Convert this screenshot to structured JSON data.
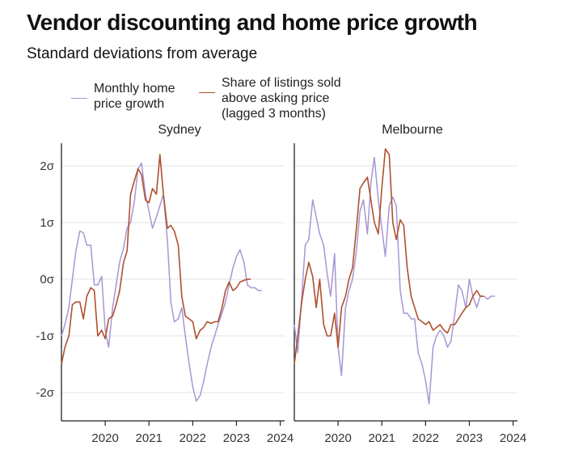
{
  "title": "Vendor discounting and home price growth",
  "subtitle": "Standard deviations from average",
  "legend": [
    {
      "label": "Monthly home\nprice growth",
      "color": "#a895d6"
    },
    {
      "label": "Share of listings sold\nabove asking price\n(lagged 3 months)",
      "color": "#b0502e"
    }
  ],
  "chart_data": [
    {
      "type": "line",
      "panel_title": "Sydney",
      "x_ticks": [
        2020,
        2021,
        2022,
        2023,
        2024
      ],
      "y_ticks": [
        {
          "value": 2,
          "label": "2σ"
        },
        {
          "value": 1,
          "label": "1σ"
        },
        {
          "value": 0,
          "label": "0σ"
        },
        {
          "value": -1,
          "label": "-1σ"
        },
        {
          "value": -2,
          "label": "-2σ"
        }
      ],
      "xlim": [
        2019.0,
        2024.1
      ],
      "ylim": [
        -2.5,
        2.4
      ],
      "grid": "horizontal",
      "series": [
        {
          "name": "Monthly home price growth",
          "color": "#a895d6",
          "x": [
            2019.0,
            2019.08,
            2019.17,
            2019.25,
            2019.33,
            2019.42,
            2019.5,
            2019.58,
            2019.67,
            2019.75,
            2019.83,
            2019.92,
            2020.0,
            2020.08,
            2020.17,
            2020.25,
            2020.33,
            2020.42,
            2020.5,
            2020.58,
            2020.67,
            2020.75,
            2020.83,
            2020.92,
            2021.0,
            2021.08,
            2021.17,
            2021.25,
            2021.33,
            2021.42,
            2021.5,
            2021.58,
            2021.67,
            2021.75,
            2021.83,
            2021.92,
            2022.0,
            2022.08,
            2022.17,
            2022.25,
            2022.33,
            2022.42,
            2022.5,
            2022.58,
            2022.67,
            2022.75,
            2022.83,
            2022.92,
            2023.0,
            2023.08,
            2023.17,
            2023.25,
            2023.33,
            2023.42,
            2023.5,
            2023.58
          ],
          "y": [
            -1.0,
            -0.8,
            -0.5,
            0.0,
            0.5,
            0.85,
            0.82,
            0.6,
            0.6,
            -0.1,
            -0.1,
            0.05,
            -0.9,
            -1.2,
            -0.5,
            -0.1,
            0.3,
            0.55,
            0.9,
            1.0,
            1.4,
            1.95,
            2.05,
            1.5,
            1.2,
            0.9,
            1.1,
            1.3,
            1.5,
            0.7,
            -0.4,
            -0.75,
            -0.7,
            -0.5,
            -1.0,
            -1.5,
            -1.9,
            -2.15,
            -2.05,
            -1.8,
            -1.5,
            -1.2,
            -1.0,
            -0.8,
            -0.6,
            -0.4,
            -0.1,
            0.2,
            0.4,
            0.52,
            0.3,
            -0.1,
            -0.15,
            -0.15,
            -0.2,
            -0.2
          ]
        },
        {
          "name": "Share of listings sold above asking price (lagged 3 months)",
          "color": "#b0502e",
          "x": [
            2019.0,
            2019.08,
            2019.17,
            2019.25,
            2019.33,
            2019.42,
            2019.5,
            2019.58,
            2019.67,
            2019.75,
            2019.83,
            2019.92,
            2020.0,
            2020.08,
            2020.17,
            2020.25,
            2020.33,
            2020.42,
            2020.5,
            2020.58,
            2020.67,
            2020.75,
            2020.83,
            2020.92,
            2021.0,
            2021.08,
            2021.17,
            2021.25,
            2021.33,
            2021.42,
            2021.5,
            2021.58,
            2021.67,
            2021.75,
            2021.83,
            2021.92,
            2022.0,
            2022.08,
            2022.17,
            2022.25,
            2022.33,
            2022.42,
            2022.5,
            2022.58,
            2022.67,
            2022.75,
            2022.83,
            2022.92,
            2023.0,
            2023.08,
            2023.17,
            2023.25,
            2023.33
          ],
          "y": [
            -1.5,
            -1.2,
            -1.0,
            -0.45,
            -0.4,
            -0.4,
            -0.7,
            -0.3,
            -0.15,
            -0.2,
            -1.0,
            -0.9,
            -1.05,
            -0.7,
            -0.65,
            -0.45,
            -0.2,
            0.3,
            0.5,
            1.5,
            1.75,
            1.95,
            1.85,
            1.4,
            1.35,
            1.6,
            1.5,
            2.2,
            1.5,
            0.9,
            0.95,
            0.85,
            0.6,
            -0.3,
            -0.65,
            -0.7,
            -0.75,
            -1.05,
            -0.9,
            -0.85,
            -0.75,
            -0.78,
            -0.75,
            -0.75,
            -0.5,
            -0.2,
            -0.05,
            -0.2,
            -0.15,
            -0.05,
            -0.02,
            0.0,
            0.0
          ]
        }
      ]
    },
    {
      "type": "line",
      "panel_title": "Melbourne",
      "x_ticks": [
        2020,
        2021,
        2022,
        2023,
        2024
      ],
      "y_ticks": [
        {
          "value": 2,
          "label": ""
        },
        {
          "value": 1,
          "label": ""
        },
        {
          "value": 0,
          "label": ""
        },
        {
          "value": -1,
          "label": ""
        },
        {
          "value": -2,
          "label": ""
        }
      ],
      "xlim": [
        2019.0,
        2024.1
      ],
      "ylim": [
        -2.5,
        2.4
      ],
      "grid": "horizontal",
      "series": [
        {
          "name": "Monthly home price growth",
          "color": "#a895d6",
          "x": [
            2019.0,
            2019.08,
            2019.17,
            2019.25,
            2019.33,
            2019.42,
            2019.5,
            2019.58,
            2019.67,
            2019.75,
            2019.83,
            2019.92,
            2020.0,
            2020.08,
            2020.17,
            2020.25,
            2020.33,
            2020.42,
            2020.5,
            2020.58,
            2020.67,
            2020.75,
            2020.83,
            2020.92,
            2021.0,
            2021.08,
            2021.17,
            2021.25,
            2021.33,
            2021.42,
            2021.5,
            2021.58,
            2021.67,
            2021.75,
            2021.83,
            2021.92,
            2022.0,
            2022.08,
            2022.17,
            2022.25,
            2022.33,
            2022.42,
            2022.5,
            2022.58,
            2022.67,
            2022.75,
            2022.83,
            2022.92,
            2023.0,
            2023.08,
            2023.17,
            2023.25,
            2023.33,
            2023.42,
            2023.5,
            2023.58
          ],
          "y": [
            -0.8,
            -1.3,
            -0.3,
            0.6,
            0.7,
            1.4,
            1.1,
            0.8,
            0.6,
            0.1,
            -0.3,
            0.45,
            -1.2,
            -1.7,
            -0.5,
            -0.2,
            0.0,
            0.5,
            1.2,
            1.4,
            0.8,
            1.7,
            2.15,
            1.4,
            0.9,
            0.4,
            1.3,
            1.45,
            1.3,
            -0.2,
            -0.6,
            -0.6,
            -0.7,
            -0.7,
            -1.3,
            -1.5,
            -1.8,
            -2.2,
            -1.2,
            -1.0,
            -0.9,
            -1.0,
            -1.2,
            -1.1,
            -0.6,
            -0.1,
            -0.2,
            -0.5,
            0.0,
            -0.3,
            -0.5,
            -0.3,
            -0.3,
            -0.35,
            -0.3,
            -0.3
          ]
        },
        {
          "name": "Share of listings sold above asking price (lagged 3 months)",
          "color": "#b0502e",
          "x": [
            2019.0,
            2019.08,
            2019.17,
            2019.25,
            2019.33,
            2019.42,
            2019.5,
            2019.58,
            2019.67,
            2019.75,
            2019.83,
            2019.92,
            2020.0,
            2020.08,
            2020.17,
            2020.25,
            2020.33,
            2020.42,
            2020.5,
            2020.58,
            2020.67,
            2020.75,
            2020.83,
            2020.92,
            2021.0,
            2021.08,
            2021.17,
            2021.25,
            2021.33,
            2021.42,
            2021.5,
            2021.58,
            2021.67,
            2021.75,
            2021.83,
            2021.92,
            2022.0,
            2022.08,
            2022.17,
            2022.25,
            2022.33,
            2022.42,
            2022.5,
            2022.58,
            2022.67,
            2022.75,
            2022.83,
            2022.92,
            2023.0,
            2023.08,
            2023.17,
            2023.25,
            2023.33
          ],
          "y": [
            -1.5,
            -1.0,
            -0.4,
            0.0,
            0.3,
            0.05,
            -0.5,
            0.0,
            -0.8,
            -1.0,
            -1.0,
            -0.6,
            -1.2,
            -0.5,
            -0.3,
            0.0,
            0.2,
            0.9,
            1.6,
            1.7,
            1.8,
            1.4,
            1.0,
            0.8,
            1.6,
            2.3,
            2.2,
            1.0,
            0.7,
            1.05,
            0.95,
            0.2,
            -0.3,
            -0.5,
            -0.7,
            -0.75,
            -0.8,
            -0.75,
            -0.9,
            -0.85,
            -0.8,
            -0.9,
            -0.95,
            -0.8,
            -0.8,
            -0.7,
            -0.6,
            -0.5,
            -0.45,
            -0.3,
            -0.2,
            -0.3,
            -0.3
          ]
        }
      ]
    }
  ]
}
